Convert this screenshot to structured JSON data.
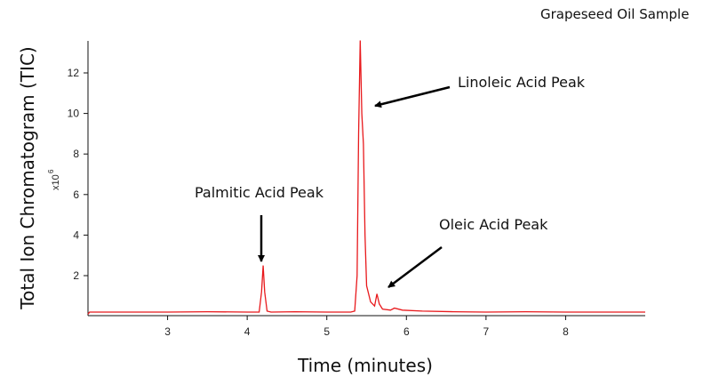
{
  "chart_data": {
    "type": "line",
    "title": "Grapeseed Oil Sample",
    "xlabel": "Time (minutes)",
    "ylabel": "Total Ion Chromatogram (TIC)",
    "yscale_label": "x10",
    "yscale_exp": "6",
    "xlim": [
      2,
      9
    ],
    "ylim": [
      0.1,
      13.6
    ],
    "xticks": [
      3,
      4,
      5,
      6,
      7,
      8
    ],
    "yticks": [
      2,
      4,
      6,
      8,
      10,
      12
    ],
    "grid": false,
    "line_color": "#e8191c",
    "series": [
      {
        "name": "TIC",
        "x": [
          2.0,
          2.02,
          2.5,
          3.0,
          3.5,
          4.0,
          4.15,
          4.18,
          4.2,
          4.22,
          4.25,
          4.3,
          4.6,
          5.0,
          5.3,
          5.35,
          5.38,
          5.4,
          5.42,
          5.44,
          5.46,
          5.48,
          5.5,
          5.55,
          5.6,
          5.63,
          5.66,
          5.7,
          5.8,
          5.85,
          5.95,
          6.2,
          6.6,
          7.0,
          7.5,
          8.0,
          8.5,
          9.0
        ],
        "y": [
          0.1,
          0.2,
          0.2,
          0.2,
          0.22,
          0.2,
          0.2,
          1.2,
          2.5,
          1.2,
          0.25,
          0.2,
          0.22,
          0.2,
          0.2,
          0.25,
          2.0,
          9.0,
          13.6,
          10.0,
          8.5,
          4.0,
          1.5,
          0.7,
          0.5,
          1.1,
          0.6,
          0.35,
          0.3,
          0.4,
          0.3,
          0.25,
          0.22,
          0.2,
          0.22,
          0.2,
          0.2,
          0.2
        ]
      }
    ],
    "annotations": [
      {
        "text": "Palmitic Acid Peak",
        "x": 4.2,
        "y": 2.5
      },
      {
        "text": "Linoleic Acid Peak",
        "x": 5.42,
        "y": 10.4
      },
      {
        "text": "Oleic Acid Peak",
        "x": 5.65,
        "y": 1.5
      }
    ]
  }
}
